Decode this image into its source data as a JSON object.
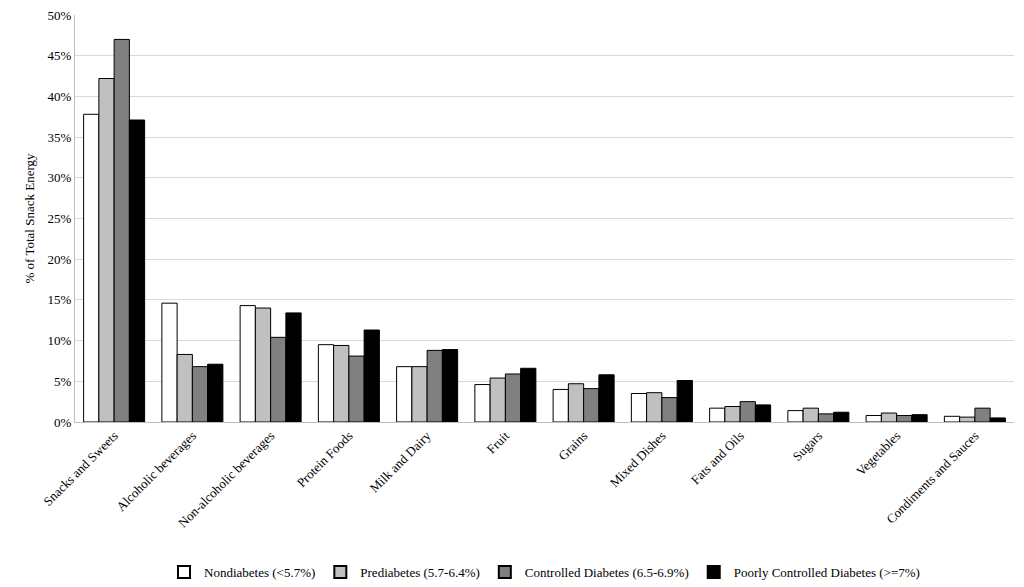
{
  "chart_data": {
    "type": "bar",
    "y_label": "% of Total Snack Energy",
    "categories": [
      "Snacks and Sweets",
      "Alcoholic beverages",
      "Non-alcoholic beverages",
      "Protein Foods",
      "Milk and Dairy",
      "Fruit",
      "Grains",
      "Mixed Dishes",
      "Fats and Oils",
      "Sugars",
      "Vegetables",
      "Condiments and Sauces"
    ],
    "series": [
      {
        "name": "Nondiabetes (<5.7%)",
        "color": "#ffffff",
        "values": [
          37.8,
          14.6,
          14.3,
          9.5,
          6.8,
          4.6,
          4.0,
          3.5,
          1.7,
          1.4,
          0.8,
          0.7
        ]
      },
      {
        "name": "Prediabetes (5.7-6.4%)",
        "color": "#c0c0c0",
        "values": [
          42.2,
          8.3,
          14.0,
          9.4,
          6.8,
          5.4,
          4.7,
          3.6,
          1.9,
          1.7,
          1.1,
          0.6
        ]
      },
      {
        "name": "Controlled Diabetes (6.5-6.9%)",
        "color": "#808080",
        "values": [
          47.0,
          6.8,
          10.4,
          8.1,
          8.8,
          5.9,
          4.1,
          3.0,
          2.5,
          1.0,
          0.8,
          1.7
        ]
      },
      {
        "name": "Poorly Controlled Diabetes (>=7%)",
        "color": "#000000",
        "values": [
          37.1,
          7.1,
          13.4,
          11.3,
          8.9,
          6.6,
          5.8,
          5.1,
          2.1,
          1.2,
          0.9,
          0.5
        ]
      }
    ],
    "ylim": [
      0,
      50
    ],
    "yticks": [
      {
        "value": 0,
        "label": "0%"
      },
      {
        "value": 5,
        "label": "5%"
      },
      {
        "value": 10,
        "label": "10%"
      },
      {
        "value": 15,
        "label": "15%"
      },
      {
        "value": 20,
        "label": "20%"
      },
      {
        "value": 25,
        "label": "25%"
      },
      {
        "value": 30,
        "label": "30%"
      },
      {
        "value": 35,
        "label": "35%"
      },
      {
        "value": 40,
        "label": "40%"
      },
      {
        "value": 45,
        "label": "45%"
      },
      {
        "value": 50,
        "label": "50%"
      }
    ],
    "grid": true,
    "legend": "bottom"
  }
}
